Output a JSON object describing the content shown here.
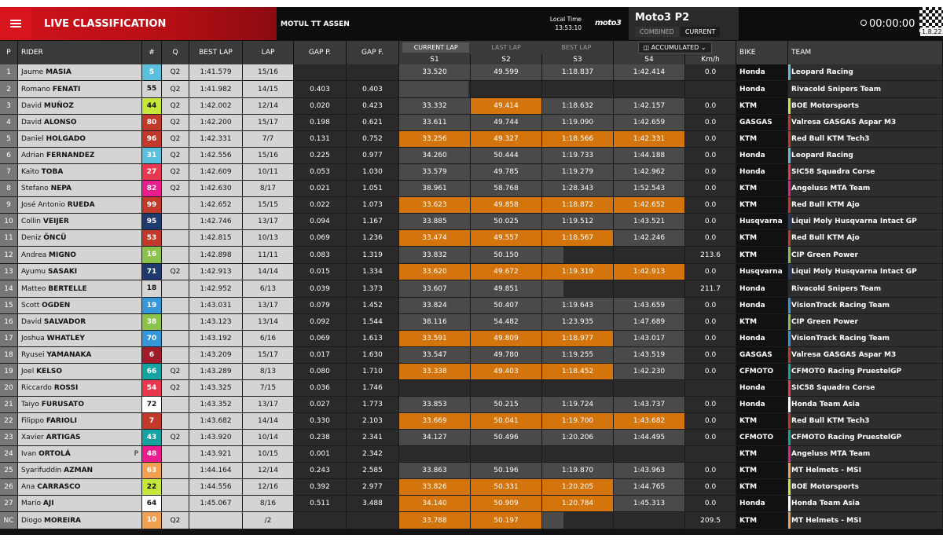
{
  "header": {
    "title": "LIVE CLASSIFICATION",
    "event": "MOTUL TT ASSEN",
    "local_time_label": "Local Time",
    "local_time": "13:53:10",
    "logo": "moto3",
    "session": "Moto3 P2",
    "view_combined": "COMBINED",
    "view_current": "CURRENT",
    "clock": "00:00:00",
    "version": "1.8.22",
    "icons": {
      "menu": "menu-icon",
      "clock": "clock-icon",
      "expand": "expand-icon"
    }
  },
  "columns": {
    "p": "P",
    "rider": "RIDER",
    "num": "#",
    "q": "Q",
    "best_lap": "BEST LAP",
    "lap": "LAP",
    "gap_p": "GAP P.",
    "gap_f": "GAP F.",
    "lap_tabs": [
      "CURRENT LAP",
      "LAST LAP",
      "BEST LAP"
    ],
    "accumulated": "ACCUMULATED",
    "s1": "S1",
    "s2": "S2",
    "s3": "S3",
    "s4": "S4",
    "kmh": "Km/h",
    "bike": "BIKE",
    "team": "TEAM"
  },
  "rows": [
    {
      "p": "1",
      "first": "Jaume",
      "last": "MASIA",
      "num": "5",
      "num_bg": "#5bc0de",
      "num_fg": "#fff",
      "q": "Q2",
      "best": "1:41.579",
      "lap": "15/16",
      "gap_p": "",
      "gap_f": "",
      "s": [
        [
          "33.520",
          ""
        ],
        [
          "49.599",
          ""
        ],
        [
          "1:18.837",
          ""
        ],
        [
          "1:42.414",
          ""
        ]
      ],
      "kmh": "0.0",
      "bike": "Honda",
      "team": "Leopard Racing",
      "team_color": "#5bc0de"
    },
    {
      "p": "2",
      "first": "Romano",
      "last": "FENATI",
      "num": "55",
      "num_bg": "#d4d4d4",
      "num_fg": "#111",
      "q": "Q2",
      "best": "1:41.982",
      "lap": "14/15",
      "gap_p": "0.403",
      "gap_f": "0.403",
      "s": [
        [
          "",
          "b"
        ],
        [
          "",
          "e"
        ],
        [
          "",
          "e"
        ],
        [
          "",
          "e"
        ]
      ],
      "kmh": "",
      "bike": "Honda",
      "team": "Rivacold Snipers Team",
      "team_color": "#2a2a2a"
    },
    {
      "p": "3",
      "first": "David",
      "last": "MUÑOZ",
      "num": "44",
      "num_bg": "#c6e83a",
      "num_fg": "#111",
      "q": "Q2",
      "best": "1:42.002",
      "lap": "12/14",
      "gap_p": "0.020",
      "gap_f": "0.423",
      "s": [
        [
          "33.332",
          ""
        ],
        [
          "49.414",
          "o"
        ],
        [
          "1:18.632",
          ""
        ],
        [
          "1:42.157",
          ""
        ]
      ],
      "kmh": "0.0",
      "bike": "KTM",
      "team": "BOE Motorsports",
      "team_color": "#c6e83a"
    },
    {
      "p": "4",
      "first": "David",
      "last": "ALONSO",
      "num": "80",
      "num_bg": "#c0392b",
      "num_fg": "#fff",
      "q": "Q2",
      "best": "1:42.200",
      "lap": "15/17",
      "gap_p": "0.198",
      "gap_f": "0.621",
      "s": [
        [
          "33.611",
          ""
        ],
        [
          "49.744",
          ""
        ],
        [
          "1:19.090",
          ""
        ],
        [
          "1:42.659",
          ""
        ]
      ],
      "kmh": "0.0",
      "bike": "GASGAS",
      "team": "Valresa GASGAS Aspar M3",
      "team_color": "#c0392b"
    },
    {
      "p": "5",
      "first": "Daniel",
      "last": "HOLGADO",
      "num": "96",
      "num_bg": "#c0392b",
      "num_fg": "#fff",
      "q": "Q2",
      "best": "1:42.331",
      "lap": "7/7",
      "gap_p": "0.131",
      "gap_f": "0.752",
      "s": [
        [
          "33.256",
          "o"
        ],
        [
          "49.327",
          "o"
        ],
        [
          "1:18.566",
          "o"
        ],
        [
          "1:42.331",
          "o"
        ]
      ],
      "kmh": "0.0",
      "bike": "KTM",
      "team": "Red Bull KTM Tech3",
      "team_color": "#c0392b"
    },
    {
      "p": "6",
      "first": "Adrian",
      "last": "FERNANDEZ",
      "num": "31",
      "num_bg": "#5bc0de",
      "num_fg": "#fff",
      "q": "Q2",
      "best": "1:42.556",
      "lap": "15/16",
      "gap_p": "0.225",
      "gap_f": "0.977",
      "s": [
        [
          "34.260",
          ""
        ],
        [
          "50.444",
          ""
        ],
        [
          "1:19.733",
          ""
        ],
        [
          "1:44.188",
          ""
        ]
      ],
      "kmh": "0.0",
      "bike": "Honda",
      "team": "Leopard Racing",
      "team_color": "#5bc0de"
    },
    {
      "p": "7",
      "first": "Kaito",
      "last": "TOBA",
      "num": "27",
      "num_bg": "#e8384f",
      "num_fg": "#fff",
      "q": "Q2",
      "best": "1:42.609",
      "lap": "10/11",
      "gap_p": "0.053",
      "gap_f": "1.030",
      "s": [
        [
          "33.579",
          ""
        ],
        [
          "49.785",
          ""
        ],
        [
          "1:19.279",
          ""
        ],
        [
          "1:42.962",
          ""
        ]
      ],
      "kmh": "0.0",
      "bike": "Honda",
      "team": "SIC58 Squadra Corse",
      "team_color": "#e8384f"
    },
    {
      "p": "8",
      "first": "Stefano",
      "last": "NEPA",
      "num": "82",
      "num_bg": "#e91e8c",
      "num_fg": "#fff",
      "q": "Q2",
      "best": "1:42.630",
      "lap": "8/17",
      "gap_p": "0.021",
      "gap_f": "1.051",
      "s": [
        [
          "38.961",
          ""
        ],
        [
          "58.768",
          ""
        ],
        [
          "1:28.343",
          ""
        ],
        [
          "1:52.543",
          ""
        ]
      ],
      "kmh": "0.0",
      "bike": "KTM",
      "team": "Angeluss MTA Team",
      "team_color": "#e91e8c"
    },
    {
      "p": "9",
      "first": "José Antonio",
      "last": "RUEDA",
      "num": "99",
      "num_bg": "#c0392b",
      "num_fg": "#fff",
      "q": "",
      "best": "1:42.652",
      "lap": "15/15",
      "gap_p": "0.022",
      "gap_f": "1.073",
      "s": [
        [
          "33.623",
          "o"
        ],
        [
          "49.858",
          "o"
        ],
        [
          "1:18.872",
          "o"
        ],
        [
          "1:42.652",
          "o"
        ]
      ],
      "kmh": "0.0",
      "bike": "KTM",
      "team": "Red Bull KTM Ajo",
      "team_color": "#c0392b"
    },
    {
      "p": "10",
      "first": "Collin",
      "last": "VEIJER",
      "num": "95",
      "num_bg": "#1f3a6e",
      "num_fg": "#fff",
      "q": "",
      "best": "1:42.746",
      "lap": "13/17",
      "gap_p": "0.094",
      "gap_f": "1.167",
      "s": [
        [
          "33.885",
          ""
        ],
        [
          "50.025",
          ""
        ],
        [
          "1:19.512",
          ""
        ],
        [
          "1:43.521",
          ""
        ]
      ],
      "kmh": "0.0",
      "bike": "Husqvarna",
      "team": "Liqui Moly Husqvarna Intact GP",
      "team_color": "#1f3a6e"
    },
    {
      "p": "11",
      "first": "Deniz",
      "last": "ÖNCÜ",
      "num": "53",
      "num_bg": "#c0392b",
      "num_fg": "#fff",
      "q": "",
      "best": "1:42.815",
      "lap": "10/13",
      "gap_p": "0.069",
      "gap_f": "1.236",
      "s": [
        [
          "33.474",
          "o"
        ],
        [
          "49.557",
          "o"
        ],
        [
          "1:18.567",
          "o"
        ],
        [
          "1:42.246",
          ""
        ]
      ],
      "kmh": "0.0",
      "bike": "KTM",
      "team": "Red Bull KTM Ajo",
      "team_color": "#c0392b"
    },
    {
      "p": "12",
      "first": "Andrea",
      "last": "MIGNO",
      "num": "16",
      "num_bg": "#8bc34a",
      "num_fg": "#fff",
      "q": "",
      "best": "1:42.898",
      "lap": "11/11",
      "gap_p": "0.083",
      "gap_f": "1.319",
      "s": [
        [
          "33.832",
          ""
        ],
        [
          "50.150",
          ""
        ],
        [
          "",
          "b"
        ],
        [
          "",
          "e"
        ]
      ],
      "kmh": "213.6",
      "bike": "KTM",
      "team": "CIP Green Power",
      "team_color": "#8bc34a"
    },
    {
      "p": "13",
      "first": "Ayumu",
      "last": "SASAKI",
      "num": "71",
      "num_bg": "#1f3a6e",
      "num_fg": "#fff",
      "q": "Q2",
      "best": "1:42.913",
      "lap": "14/14",
      "gap_p": "0.015",
      "gap_f": "1.334",
      "s": [
        [
          "33.620",
          "o"
        ],
        [
          "49.672",
          "o"
        ],
        [
          "1:19.319",
          "o"
        ],
        [
          "1:42.913",
          "o"
        ]
      ],
      "kmh": "0.0",
      "bike": "Husqvarna",
      "team": "Liqui Moly Husqvarna Intact GP",
      "team_color": "#1f3a6e"
    },
    {
      "p": "14",
      "first": "Matteo",
      "last": "BERTELLE",
      "num": "18",
      "num_bg": "#d4d4d4",
      "num_fg": "#111",
      "q": "",
      "best": "1:42.952",
      "lap": "6/13",
      "gap_p": "0.039",
      "gap_f": "1.373",
      "s": [
        [
          "33.607",
          ""
        ],
        [
          "49.851",
          ""
        ],
        [
          "",
          "b"
        ],
        [
          "",
          "e"
        ]
      ],
      "kmh": "211.7",
      "bike": "Honda",
      "team": "Rivacold Snipers Team",
      "team_color": "#2a2a2a"
    },
    {
      "p": "15",
      "first": "Scott",
      "last": "OGDEN",
      "num": "19",
      "num_bg": "#3498db",
      "num_fg": "#fff",
      "q": "",
      "best": "1:43.031",
      "lap": "13/17",
      "gap_p": "0.079",
      "gap_f": "1.452",
      "s": [
        [
          "33.824",
          ""
        ],
        [
          "50.407",
          ""
        ],
        [
          "1:19.643",
          ""
        ],
        [
          "1:43.659",
          ""
        ]
      ],
      "kmh": "0.0",
      "bike": "Honda",
      "team": "VisionTrack Racing Team",
      "team_color": "#3498db"
    },
    {
      "p": "16",
      "first": "David",
      "last": "SALVADOR",
      "num": "38",
      "num_bg": "#8bc34a",
      "num_fg": "#fff",
      "q": "",
      "best": "1:43.123",
      "lap": "13/14",
      "gap_p": "0.092",
      "gap_f": "1.544",
      "s": [
        [
          "38.116",
          ""
        ],
        [
          "54.482",
          ""
        ],
        [
          "1:23.935",
          ""
        ],
        [
          "1:47.689",
          ""
        ]
      ],
      "kmh": "0.0",
      "bike": "KTM",
      "team": "CIP Green Power",
      "team_color": "#8bc34a"
    },
    {
      "p": "17",
      "first": "Joshua",
      "last": "WHATLEY",
      "num": "70",
      "num_bg": "#3498db",
      "num_fg": "#fff",
      "q": "",
      "best": "1:43.192",
      "lap": "6/16",
      "gap_p": "0.069",
      "gap_f": "1.613",
      "s": [
        [
          "33.591",
          "o"
        ],
        [
          "49.809",
          "o"
        ],
        [
          "1:18.977",
          "o"
        ],
        [
          "1:43.017",
          ""
        ]
      ],
      "kmh": "0.0",
      "bike": "Honda",
      "team": "VisionTrack Racing Team",
      "team_color": "#3498db"
    },
    {
      "p": "18",
      "first": "Ryusei",
      "last": "YAMANAKA",
      "num": "6",
      "num_bg": "#a01c28",
      "num_fg": "#fff",
      "q": "",
      "best": "1:43.209",
      "lap": "15/17",
      "gap_p": "0.017",
      "gap_f": "1.630",
      "s": [
        [
          "33.547",
          ""
        ],
        [
          "49.780",
          ""
        ],
        [
          "1:19.255",
          ""
        ],
        [
          "1:43.519",
          ""
        ]
      ],
      "kmh": "0.0",
      "bike": "GASGAS",
      "team": "Valresa GASGAS Aspar M3",
      "team_color": "#c0392b"
    },
    {
      "p": "19",
      "first": "Joel",
      "last": "KELSO",
      "num": "66",
      "num_bg": "#17a2a2",
      "num_fg": "#fff",
      "q": "Q2",
      "best": "1:43.289",
      "lap": "8/13",
      "gap_p": "0.080",
      "gap_f": "1.710",
      "s": [
        [
          "33.338",
          "o"
        ],
        [
          "49.403",
          "o"
        ],
        [
          "1:18.452",
          "o"
        ],
        [
          "1:42.230",
          ""
        ]
      ],
      "kmh": "0.0",
      "bike": "CFMOTO",
      "team": "CFMOTO Racing PruestelGP",
      "team_color": "#17a2a2"
    },
    {
      "p": "20",
      "first": "Riccardo",
      "last": "ROSSI",
      "num": "54",
      "num_bg": "#e8384f",
      "num_fg": "#fff",
      "q": "Q2",
      "best": "1:43.325",
      "lap": "7/15",
      "gap_p": "0.036",
      "gap_f": "1.746",
      "s": [
        [
          "",
          "e"
        ],
        [
          "",
          "e"
        ],
        [
          "",
          "e"
        ],
        [
          "",
          "e"
        ]
      ],
      "kmh": "",
      "bike": "Honda",
      "team": "SIC58 Squadra Corse",
      "team_color": "#e8384f"
    },
    {
      "p": "21",
      "first": "Taiyo",
      "last": "FURUSATO",
      "num": "72",
      "num_bg": "#ffffff",
      "num_fg": "#111",
      "q": "",
      "best": "1:43.352",
      "lap": "13/17",
      "gap_p": "0.027",
      "gap_f": "1.773",
      "s": [
        [
          "33.853",
          ""
        ],
        [
          "50.215",
          ""
        ],
        [
          "1:19.724",
          ""
        ],
        [
          "1:43.737",
          ""
        ]
      ],
      "kmh": "0.0",
      "bike": "Honda",
      "team": "Honda Team Asia",
      "team_color": "#ffffff"
    },
    {
      "p": "22",
      "first": "Filippo",
      "last": "FARIOLI",
      "num": "7",
      "num_bg": "#c0392b",
      "num_fg": "#fff",
      "q": "",
      "best": "1:43.682",
      "lap": "14/14",
      "gap_p": "0.330",
      "gap_f": "2.103",
      "s": [
        [
          "33.669",
          "o"
        ],
        [
          "50.041",
          "o"
        ],
        [
          "1:19.700",
          "o"
        ],
        [
          "1:43.682",
          "o"
        ]
      ],
      "kmh": "0.0",
      "bike": "KTM",
      "team": "Red Bull KTM Tech3",
      "team_color": "#c0392b"
    },
    {
      "p": "23",
      "first": "Xavier",
      "last": "ARTIGAS",
      "num": "43",
      "num_bg": "#17a2a2",
      "num_fg": "#fff",
      "q": "Q2",
      "best": "1:43.920",
      "lap": "10/14",
      "gap_p": "0.238",
      "gap_f": "2.341",
      "s": [
        [
          "34.127",
          ""
        ],
        [
          "50.496",
          ""
        ],
        [
          "1:20.206",
          ""
        ],
        [
          "1:44.495",
          ""
        ]
      ],
      "kmh": "0.0",
      "bike": "CFMOTO",
      "team": "CFMOTO Racing PruestelGP",
      "team_color": "#17a2a2"
    },
    {
      "p": "24",
      "first": "Ivan",
      "last": "ORTOLÁ",
      "pen": "P",
      "num": "48",
      "num_bg": "#e91e8c",
      "num_fg": "#fff",
      "q": "",
      "best": "1:43.921",
      "lap": "10/15",
      "gap_p": "0.001",
      "gap_f": "2.342",
      "s": [
        [
          "",
          "e"
        ],
        [
          "",
          "e"
        ],
        [
          "",
          "e"
        ],
        [
          "",
          "e"
        ]
      ],
      "kmh": "",
      "bike": "KTM",
      "team": "Angeluss MTA Team",
      "team_color": "#e91e8c"
    },
    {
      "p": "25",
      "first": "Syarifuddin",
      "last": "AZMAN",
      "num": "63",
      "num_bg": "#f0a050",
      "num_fg": "#fff",
      "q": "",
      "best": "1:44.164",
      "lap": "12/14",
      "gap_p": "0.243",
      "gap_f": "2.585",
      "s": [
        [
          "33.863",
          ""
        ],
        [
          "50.196",
          ""
        ],
        [
          "1:19.870",
          ""
        ],
        [
          "1:43.963",
          ""
        ]
      ],
      "kmh": "0.0",
      "bike": "KTM",
      "team": "MT Helmets - MSI",
      "team_color": "#f0a050"
    },
    {
      "p": "26",
      "first": "Ana",
      "last": "CARRASCO",
      "num": "22",
      "num_bg": "#c6e83a",
      "num_fg": "#111",
      "q": "",
      "best": "1:44.556",
      "lap": "12/16",
      "gap_p": "0.392",
      "gap_f": "2.977",
      "s": [
        [
          "33.826",
          "o"
        ],
        [
          "50.331",
          "o"
        ],
        [
          "1:20.205",
          "o"
        ],
        [
          "1:44.765",
          ""
        ]
      ],
      "kmh": "0.0",
      "bike": "KTM",
      "team": "BOE Motorsports",
      "team_color": "#c6e83a"
    },
    {
      "p": "27",
      "first": "Mario",
      "last": "AJI",
      "num": "64",
      "num_bg": "#ffffff",
      "num_fg": "#111",
      "q": "",
      "best": "1:45.067",
      "lap": "8/16",
      "gap_p": "0.511",
      "gap_f": "3.488",
      "s": [
        [
          "34.140",
          "o"
        ],
        [
          "50.909",
          "o"
        ],
        [
          "1:20.784",
          "o"
        ],
        [
          "1:45.313",
          ""
        ]
      ],
      "kmh": "0.0",
      "bike": "Honda",
      "team": "Honda Team Asia",
      "team_color": "#ffffff"
    },
    {
      "p": "NC",
      "first": "Diogo",
      "last": "MOREIRA",
      "num": "10",
      "num_bg": "#f0a050",
      "num_fg": "#fff",
      "q": "Q2",
      "best": "",
      "lap": "/2",
      "gap_p": "",
      "gap_f": "",
      "s": [
        [
          "33.788",
          "o"
        ],
        [
          "50.197",
          "o"
        ],
        [
          "",
          "b"
        ],
        [
          "",
          "e"
        ]
      ],
      "kmh": "209.5",
      "bike": "KTM",
      "team": "MT Helmets - MSI",
      "team_color": "#f0a050"
    }
  ]
}
